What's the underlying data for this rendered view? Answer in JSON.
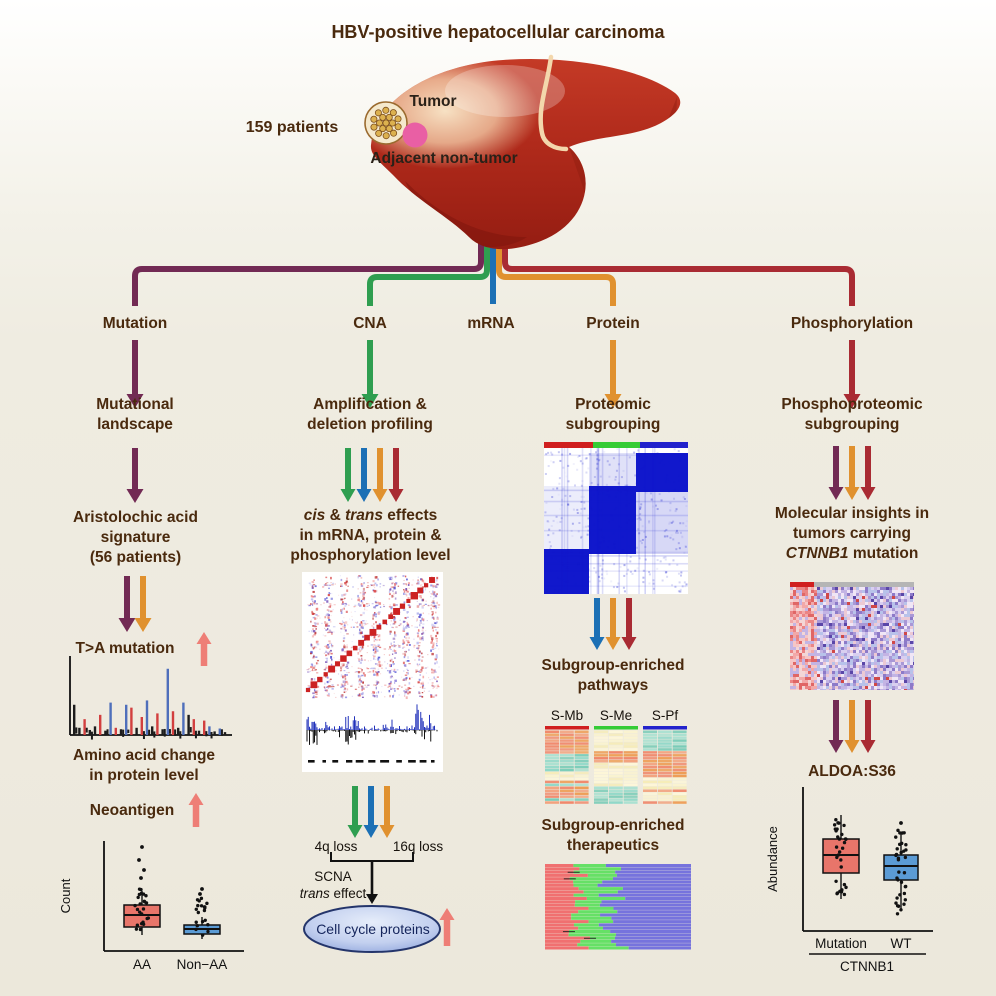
{
  "palette": {
    "mutation": "#722a54",
    "cna": "#2f9e50",
    "mrna": "#1c70b5",
    "protein": "#e0912f",
    "phospho": "#a92b33",
    "pink": "#ee7e76",
    "text": "#4a2a0e",
    "black": "#1a1a1a",
    "box_red": "#e8756a",
    "box_blue": "#5b9bd5",
    "bar_red": "#d01f1f",
    "bar_green": "#35cc35",
    "bar_blue": "#2222cc",
    "bar_gray": "#b5b5b5"
  },
  "title": "HBV-positive hepatocellular carcinoma",
  "liver": {
    "patients": "159 patients",
    "tumor": "Tumor",
    "adjacent": "Adjacent non-tumor"
  },
  "branches": [
    {
      "label": "Mutation",
      "color": "#722a54"
    },
    {
      "label": "CNA",
      "color": "#2f9e50"
    },
    {
      "label": "mRNA",
      "color": "#1c70b5"
    },
    {
      "label": "Protein",
      "color": "#e0912f"
    },
    {
      "label": "Phosphorylation",
      "color": "#a92b33"
    }
  ],
  "mutation": {
    "step1": [
      "Mutational",
      "landscape"
    ],
    "step2": [
      "Aristolochic acid",
      "signature",
      "(56 patients)"
    ],
    "ta": "T>A mutation",
    "amino": [
      "Amino acid change",
      "in protein level"
    ],
    "neo": "Neoantigen",
    "signature": {
      "colors": {
        "k": "#1c1c1c",
        "r": "#d23f3f",
        "b": "#4f6fbb"
      },
      "bars": [
        [
          "k",
          0.42
        ],
        [
          "k",
          0.1
        ],
        [
          "r",
          0.22
        ],
        [
          "k",
          0.07
        ],
        [
          "k",
          0.12
        ],
        [
          "r",
          0.28
        ],
        [
          "k",
          0.06
        ],
        [
          "b",
          0.45
        ],
        [
          "r",
          0.1
        ],
        [
          "k",
          0.08
        ],
        [
          "b",
          0.42
        ],
        [
          "r",
          0.38
        ],
        [
          "k",
          0.1
        ],
        [
          "r",
          0.25
        ],
        [
          "b",
          0.48
        ],
        [
          "k",
          0.12
        ],
        [
          "r",
          0.3
        ],
        [
          "k",
          0.08
        ],
        [
          "b",
          0.92
        ],
        [
          "r",
          0.33
        ],
        [
          "k",
          0.1
        ],
        [
          "b",
          0.45
        ],
        [
          "k",
          0.28
        ],
        [
          "r",
          0.22
        ],
        [
          "k",
          0.06
        ],
        [
          "r",
          0.2
        ],
        [
          "b",
          0.12
        ],
        [
          "k",
          0.05
        ],
        [
          "b",
          0.09
        ],
        [
          "k",
          0.04
        ]
      ]
    },
    "boxplot": {
      "ylabel": "Count",
      "categories": [
        "AA",
        "Non−AA"
      ],
      "box_colors": [
        "#e8756a",
        "#5b9bd5"
      ]
    }
  },
  "cna": {
    "step1": [
      "Amplification &",
      "deletion profiling"
    ],
    "cis": "cis",
    "amp": " & ",
    "trans": "trans",
    "eff": " effects",
    "step2_l2": "in mRNA, protein &",
    "step2_l3": "phosphorylation level",
    "loss4": "4q loss",
    "loss16": "16q loss",
    "scna1": "SCNA",
    "scna_trans": "trans",
    "scna_rest": " effect",
    "bubble": "Cell cycle proteins"
  },
  "protein": {
    "step1": [
      "Proteomic",
      "subgrouping"
    ],
    "step2": [
      "Subgroup-enriched",
      "pathways"
    ],
    "panels": [
      {
        "label": "S-Mb",
        "bar": "#d01f1f"
      },
      {
        "label": "S-Me",
        "bar": "#35cc35"
      },
      {
        "label": "S-Pf",
        "bar": "#2222cc"
      }
    ],
    "step3": [
      "Subgroup-enriched",
      "therapeutics"
    ]
  },
  "phospho": {
    "step1": [
      "Phosphoproteomic",
      "subgrouping"
    ],
    "step2_l1": "Molecular insights in",
    "step2_l2": "tumors carrying",
    "step2_gene": "CTNNB1",
    "step2_post": " mutation",
    "step3": "ALDOA:S36",
    "boxplot": {
      "ylabel": "Abundance",
      "categories": [
        "Mutation",
        "WT"
      ],
      "group": "CTNNB1",
      "box_colors": [
        "#e8756a",
        "#5b9bd5"
      ]
    }
  }
}
